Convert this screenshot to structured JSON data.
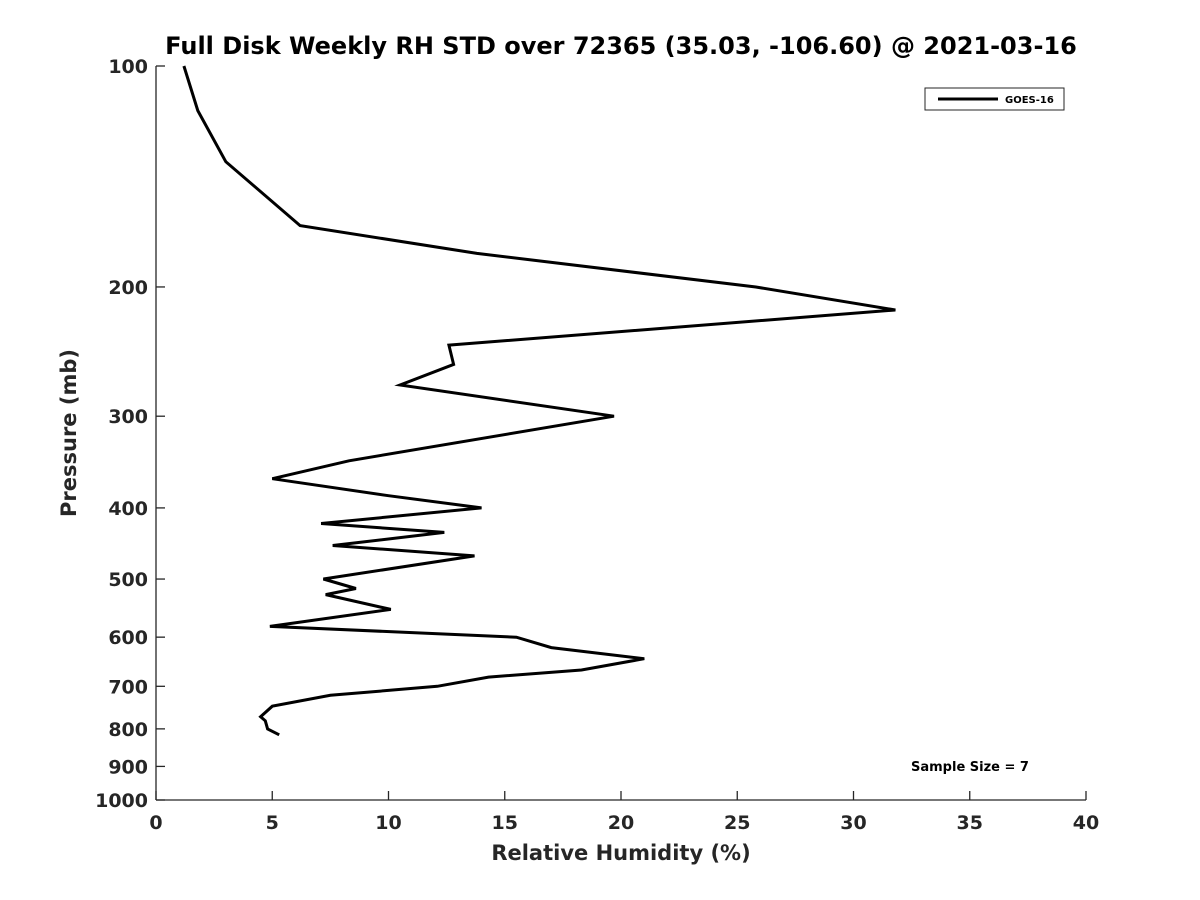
{
  "chart_data": {
    "type": "line",
    "title": "Full Disk Weekly RH STD over 72365 (35.03, -106.60) @ 2021-03-16",
    "xlabel": "Relative Humidity (%)",
    "ylabel": "Pressure (mb)",
    "xlim": [
      0,
      40
    ],
    "ylim": [
      100,
      1000
    ],
    "y_scale": "log",
    "y_reversed": true,
    "x_ticks": [
      "0",
      "5",
      "10",
      "15",
      "20",
      "25",
      "30",
      "35",
      "40"
    ],
    "y_ticks": [
      "100",
      "200",
      "300",
      "400",
      "500",
      "600",
      "700",
      "800",
      "900",
      "1000"
    ],
    "grid": false,
    "legend_position": "top-right",
    "series": [
      {
        "name": "GOES-16",
        "color": "#000000",
        "x": [
          1.2,
          1.8,
          3.0,
          6.2,
          13.8,
          25.8,
          31.8,
          12.6,
          12.8,
          10.5,
          19.7,
          8.3,
          5.0,
          10.0,
          14.0,
          7.1,
          12.4,
          7.6,
          13.7,
          7.2,
          8.6,
          7.3,
          10.1,
          4.9,
          15.5,
          17.0,
          21.0,
          18.3,
          14.3,
          12.1,
          7.5,
          5.0,
          4.5,
          4.7,
          4.8,
          5.3
        ],
        "y": [
          100,
          115,
          135,
          165,
          180,
          200,
          215,
          240,
          255,
          272,
          300,
          345,
          365,
          385,
          400,
          420,
          432,
          450,
          465,
          500,
          515,
          525,
          550,
          580,
          600,
          620,
          642,
          665,
          680,
          700,
          720,
          745,
          770,
          780,
          800,
          815
        ]
      }
    ],
    "annotations": [
      "Sample Size = 7"
    ]
  },
  "legend": {
    "label": "GOES-16"
  },
  "annotation": {
    "sample_size": "Sample Size = 7"
  }
}
